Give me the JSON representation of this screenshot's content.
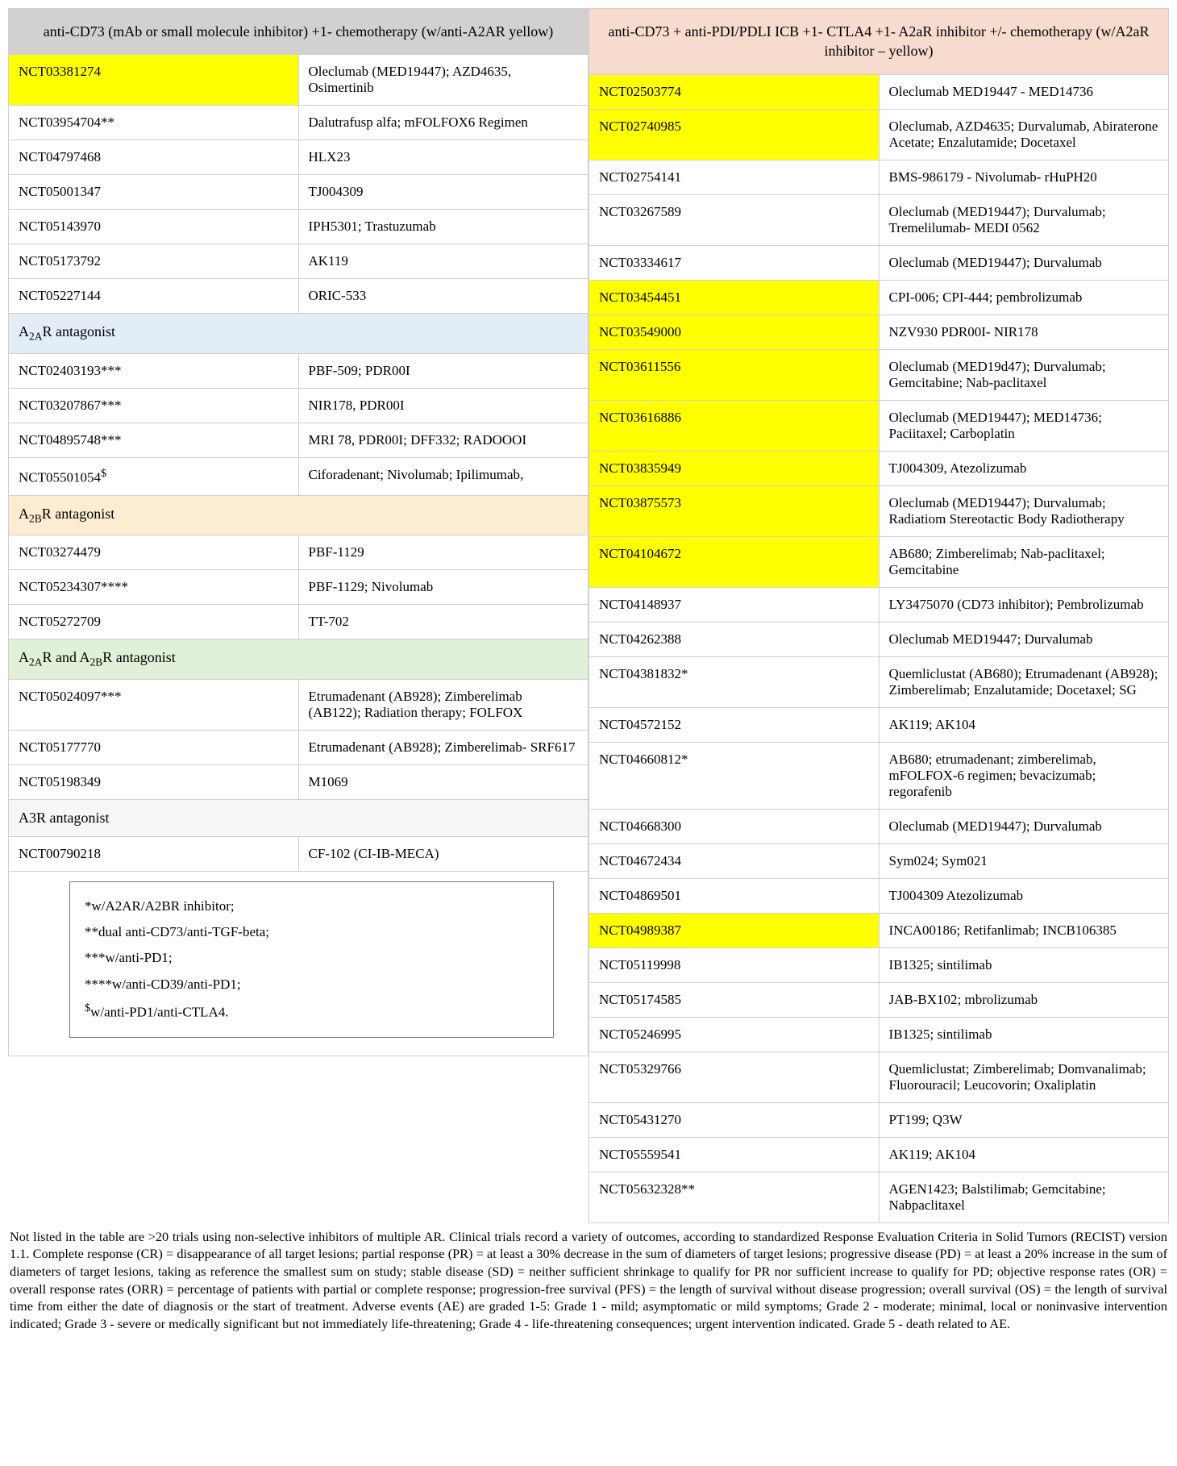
{
  "colors": {
    "hdr_left_bg": "#d2d1cf",
    "hdr_right_bg": "#f6dbce",
    "sec_a2a_bg": "#e3edf7",
    "sec_a2b_bg": "#fbecd2",
    "sec_a2ab_bg": "#e1f0d9",
    "sec_a3r_bg": "#f6f6f6",
    "yellow": "#ffff00"
  },
  "left_header": "anti-CD73 (mAb or small molecule inhibitor) +1- chemotherapy (w/anti-A2AR yellow)",
  "right_header": "anti-CD73 + anti-PDI/PDLI ICB +1- CTLA4 +1- A2aR inhibitor +/- chemotherapy (w/A2aR inhibitor – yellow)",
  "left_rows": [
    {
      "id": "NCT03381274",
      "desc": "Oleclumab (MED19447); AZD4635, Osimertinib",
      "hl": true
    },
    {
      "id": "NCT03954704**",
      "desc": "Dalutrafusp alfa; mFOLFOX6 Regimen"
    },
    {
      "id": "NCT04797468",
      "desc": "HLX23"
    },
    {
      "id": "NCT05001347",
      "desc": "TJ004309"
    },
    {
      "id": "NCT05143970",
      "desc": "IPH5301; Trastuzumab"
    },
    {
      "id": "NCT05173792",
      "desc": "AK119"
    },
    {
      "id": "NCT05227144",
      "desc": "ORIC-533"
    },
    {
      "section": "A2A",
      "label_pre": "A",
      "sub": "2A",
      "label_post": "R antagonist",
      "bg": "sec_a2a_bg"
    },
    {
      "id": "NCT02403193***",
      "desc": "PBF-509; PDR00I"
    },
    {
      "id": "NCT03207867***",
      "desc": "NIR178, PDR00I"
    },
    {
      "id": "NCT04895748***",
      "desc": "MRI 78, PDR00I; DFF332; RADOOOI"
    },
    {
      "id": "NCT05501054$",
      "desc": "Ciforadenant; Nivolumab; Ipilimumab,",
      "sup": "$"
    },
    {
      "section": "A2B",
      "label_pre": "A",
      "sub": "2B",
      "label_post": "R antagonist",
      "bg": "sec_a2b_bg"
    },
    {
      "id": "NCT03274479",
      "desc": "PBF-1129"
    },
    {
      "id": "NCT05234307****",
      "desc": "PBF-1129; Nivolumab"
    },
    {
      "id": "NCT05272709",
      "desc": "TT-702"
    },
    {
      "section": "A2AB",
      "label_pre": "A",
      "sub": "2A",
      "mid": "R and A",
      "sub2": "2B",
      "label_post": "R antagonist",
      "bg": "sec_a2ab_bg"
    },
    {
      "id": "NCT05024097***",
      "desc": "Etrumadenant (AB928); Zimberelimab (AB122); Radiation therapy; FOLFOX"
    },
    {
      "id": "NCT05177770",
      "desc": "Etrumadenant (AB928); Zimberelimab- SRF617"
    },
    {
      "id": "NCT05198349",
      "desc": "M1069"
    },
    {
      "section": "A3R",
      "plain": "A3R antagonist",
      "bg": "sec_a3r_bg"
    },
    {
      "id": "NCT00790218",
      "desc": "CF-102 (CI-IB-MECA)"
    }
  ],
  "right_rows": [
    {
      "id": "NCT02503774",
      "desc": "Oleclumab MED19447 - MED14736",
      "hl": true
    },
    {
      "id": "NCT02740985",
      "desc": "Oleclumab, AZD4635; Durvalumab, Abiraterone Acetate; Enzalutamide; Docetaxel",
      "hl": true
    },
    {
      "id": "NCT02754141",
      "desc": "BMS-986179 - Nivolumab- rHuPH20"
    },
    {
      "id": "NCT03267589",
      "desc": "Oleclumab (MED19447); Durvalumab; Tremelilumab- MEDI 0562"
    },
    {
      "id": "NCT03334617",
      "desc": "Oleclumab (MED19447); Durvalumab"
    },
    {
      "id": "NCT03454451",
      "desc": "CPI-006; CPI-444; pembrolizumab",
      "hl": true
    },
    {
      "id": "NCT03549000",
      "desc": "NZV930 PDR00I- NIR178",
      "hl": true
    },
    {
      "id": "NCT03611556",
      "desc": "Oleclumab (MED19d47); Durvalumab; Gemcitabine; Nab-paclitaxel",
      "hl": true
    },
    {
      "id": "NCT03616886",
      "desc": "Oleclumab (MED19447); MED14736; Paciitaxel; Carboplatin",
      "hl": true
    },
    {
      "id": "NCT03835949",
      "desc": "TJ004309, Atezolizumab",
      "hl": true
    },
    {
      "id": "NCT03875573",
      "desc": "Oleclumab (MED19447); Durvalumab; Radiatiom Stereotactic Body Radiotherapy",
      "hl": true
    },
    {
      "id": "NCT04104672",
      "desc": "AB680; Zimberelimab; Nab-paclitaxel; Gemcitabine",
      "hl": true
    },
    {
      "id": "NCT04148937",
      "desc": "LY3475070 (CD73 inhibitor); Pembrolizumab"
    },
    {
      "id": "NCT04262388",
      "desc": "Oleclumab MED19447; Durvalumab"
    },
    {
      "id": "NCT04381832*",
      "desc": "Quemliclustat (AB680); Etrumadenant (AB928); Zimberelimab; Enzalutamide; Docetaxel; SG"
    },
    {
      "id": "NCT04572152",
      "desc": "AK119; AK104"
    },
    {
      "id": "NCT04660812*",
      "desc": "AB680; etrumadenant; zimberelimab, mFOLFOX-6 regimen; bevacizumab; regorafenib"
    },
    {
      "id": "NCT04668300",
      "desc": "Oleclumab (MED19447); Durvalumab"
    },
    {
      "id": "NCT04672434",
      "desc": "Sym024; Sym021"
    },
    {
      "id": "NCT04869501",
      "desc": "TJ004309 Atezolizumab"
    },
    {
      "id": "NCT04989387",
      "desc": "INCA00186; Retifanlimab; INCB106385",
      "hl": true
    },
    {
      "id": "NCT05119998",
      "desc": "IB1325; sintilimab"
    },
    {
      "id": "NCT05174585",
      "desc": "JAB-BX102; mbrolizumab"
    },
    {
      "id": "NCT05246995",
      "desc": "IB1325; sintilimab"
    },
    {
      "id": "NCT05329766",
      "desc": "Quemliclustat; Zimberelimab; Domvanalimab; Fluorouracil; Leucovorin; Oxaliplatin"
    },
    {
      "id": "NCT05431270",
      "desc": "PT199; Q3W"
    },
    {
      "id": "NCT05559541",
      "desc": "AK119; AK104"
    },
    {
      "id": "NCT05632328**",
      "desc": "AGEN1423; Balstilimab; Gemcitabine; Nabpaclitaxel"
    }
  ],
  "legend": {
    "l1": "*w/A2AR/A2BR inhibitor;",
    "l2": "**dual anti-CD73/anti-TGF-beta;",
    "l3": "***w/anti-PD1;",
    "l4": "****w/anti-CD39/anti-PD1;",
    "l5pre": "$",
    "l5": "w/anti-PD1/anti-CTLA4."
  },
  "footnote": "Not listed in the table are >20 trials using non-selective inhibitors of multiple AR. Clinical trials record a variety of outcomes, according to standardized Response Evaluation Criteria in Solid Tumors (RECIST) version 1.1. Complete response (CR) = disappearance of all target lesions; partial response (PR) = at least a 30% decrease in the sum of diameters of target lesions; progressive disease (PD) = at least a 20% increase in the sum of diameters of target lesions, taking as reference the smallest sum on study; stable disease (SD) = neither sufficient shrinkage to qualify for PR nor sufficient increase to qualify for PD; objective response rates (OR) = overall response rates (ORR) = percentage of patients with partial or complete response; progression-free survival (PFS) = the length of survival without disease progression; overall survival (OS) = the length of survival time from either the date of diagnosis or the start of treatment. Adverse events (AE) are graded 1-5: Grade 1 - mild; asymptomatic or mild symptoms; Grade 2 - moderate; minimal, local or noninvasive intervention indicated; Grade 3 - severe or medically significant but not immediately life-threatening; Grade 4 - life-threatening consequences; urgent intervention indicated. Grade 5 - death related to AE."
}
